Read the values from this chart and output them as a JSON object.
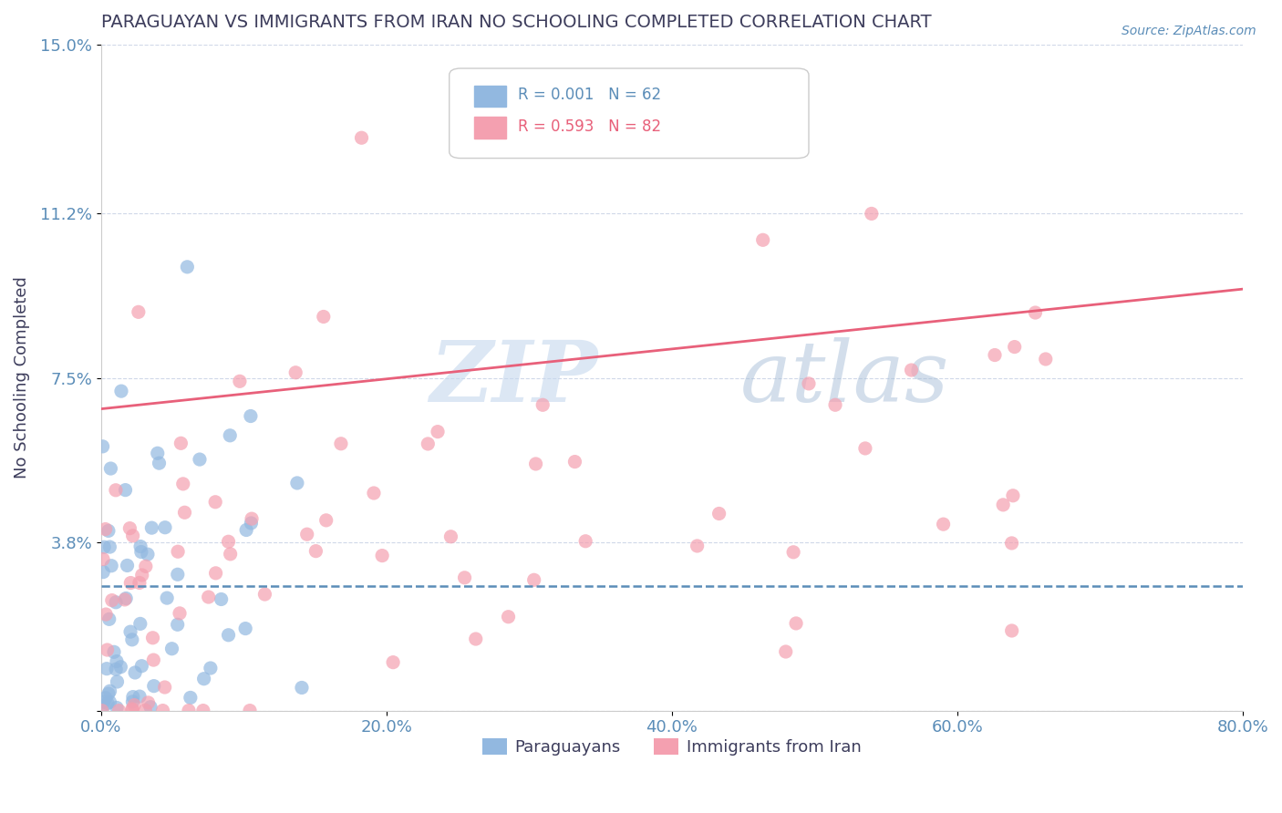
{
  "title": "PARAGUAYAN VS IMMIGRANTS FROM IRAN NO SCHOOLING COMPLETED CORRELATION CHART",
  "source": "Source: ZipAtlas.com",
  "ylabel": "No Schooling Completed",
  "xlim": [
    0.0,
    80.0
  ],
  "ylim": [
    0.0,
    15.0
  ],
  "xticks": [
    0.0,
    20.0,
    40.0,
    60.0,
    80.0
  ],
  "yticks": [
    0.0,
    3.8,
    7.5,
    11.2,
    15.0
  ],
  "ytick_labels": [
    "",
    "3.8%",
    "7.5%",
    "11.2%",
    "15.0%"
  ],
  "xtick_labels": [
    "0.0%",
    "20.0%",
    "40.0%",
    "60.0%",
    "80.0%"
  ],
  "blue_color": "#92b8e0",
  "pink_color": "#f4a0b0",
  "blue_line_color": "#5b8db8",
  "pink_line_color": "#e8607a",
  "legend_blue_text": "R = 0.001   N = 62",
  "legend_pink_text": "R = 0.593   N = 82",
  "legend1_label": "Paraguayans",
  "legend2_label": "Immigrants from Iran",
  "watermark_zip": "ZIP",
  "watermark_atlas": "atlas",
  "title_color": "#3d3d5c",
  "axis_color": "#5b8db8",
  "axis_label_color": "#3d3d5c",
  "blue_N": 62,
  "pink_N": 82,
  "blue_mean_y": 2.8,
  "pink_line_start_x": 0.0,
  "pink_line_start_y": 6.8,
  "pink_line_end_x": 80.0,
  "pink_line_end_y": 9.5,
  "background_color": "#ffffff",
  "grid_color": "#d0d8e8",
  "seed": 42
}
